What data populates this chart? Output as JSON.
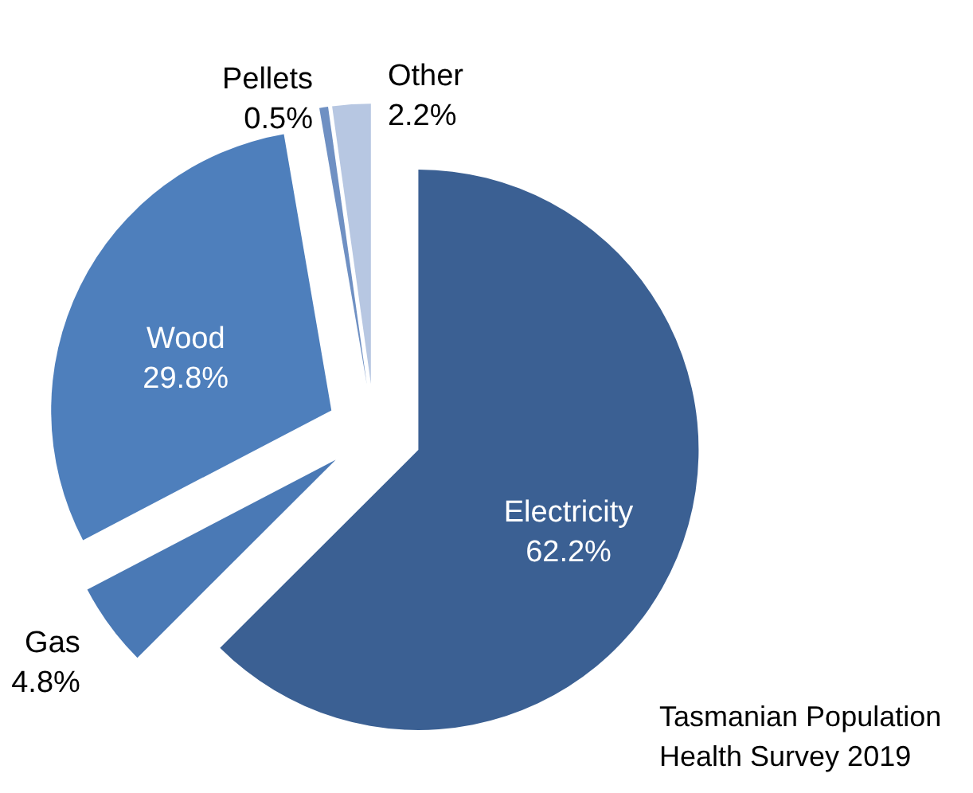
{
  "chart_data": {
    "type": "pie",
    "categories": [
      "Electricity",
      "Gas",
      "Wood",
      "Pellets",
      "Other"
    ],
    "values": [
      62.2,
      4.8,
      29.8,
      0.5,
      2.2
    ],
    "value_labels": [
      "62.2%",
      "4.8%",
      "29.8%",
      "0.5%",
      "2.2%"
    ],
    "colors": [
      "#3b6093",
      "#4a79b5",
      "#4e7fbc",
      "#6f90c3",
      "#b7c7e2"
    ],
    "annotations": [
      "Tasmanian Population Health Survey 2019"
    ]
  }
}
